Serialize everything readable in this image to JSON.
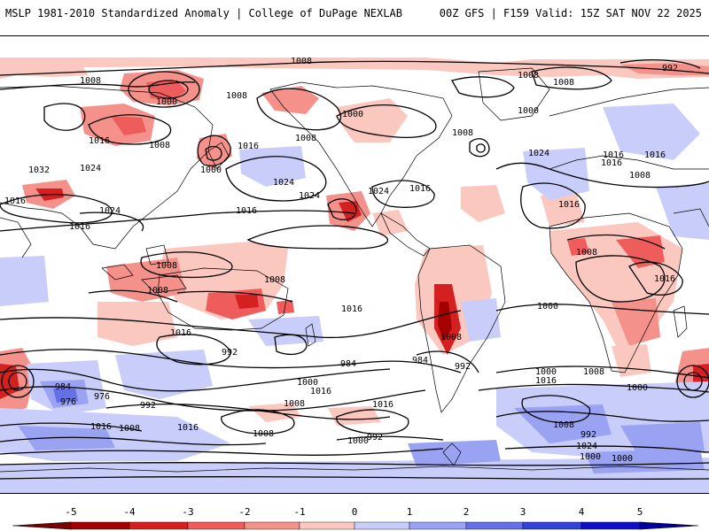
{
  "header": {
    "left_title": "MSLP 1981-2010 Standardized Anomaly | College of DuPage NEXLAB",
    "right_title": "00Z GFS | F159 Valid: 15Z SAT NOV 22 2025"
  },
  "colors": {
    "neg5": "#a50000",
    "neg4": "#d42020",
    "neg3": "#ee5c5c",
    "neg2": "#f5918b",
    "neg1": "#fbc8c0",
    "zero": "#ffffff",
    "pos1": "#c8cdfa",
    "pos2": "#9aa2f2",
    "pos3": "#6670e6",
    "pos4": "#3341d8",
    "pos5": "#1010c8"
  },
  "colorbar": {
    "ticks": [
      "-5",
      "-4",
      "-3",
      "-2",
      "-1",
      "0",
      "1",
      "2",
      "3",
      "4",
      "5"
    ]
  },
  "isobar_labels": [
    {
      "id": "l1",
      "text": "1008"
    },
    {
      "id": "l2",
      "text": "1008"
    },
    {
      "id": "l3",
      "text": "1000"
    },
    {
      "id": "l4",
      "text": "1008"
    },
    {
      "id": "l5",
      "text": "1016"
    },
    {
      "id": "l6",
      "text": "1008"
    },
    {
      "id": "l7",
      "text": "1000"
    },
    {
      "id": "l8",
      "text": "1016"
    },
    {
      "id": "l9",
      "text": "1032"
    },
    {
      "id": "l10",
      "text": "1024"
    },
    {
      "id": "l11",
      "text": "1016"
    },
    {
      "id": "l12",
      "text": "1024"
    },
    {
      "id": "l13",
      "text": "1016"
    },
    {
      "id": "l14",
      "text": "1024"
    },
    {
      "id": "l15",
      "text": "1024"
    },
    {
      "id": "l16",
      "text": "1000"
    },
    {
      "id": "l17",
      "text": "1008"
    },
    {
      "id": "l18",
      "text": "1008"
    },
    {
      "id": "l19",
      "text": "1008"
    },
    {
      "id": "l20",
      "text": "1000"
    },
    {
      "id": "l21",
      "text": "1024"
    },
    {
      "id": "l22",
      "text": "1016"
    },
    {
      "id": "l23",
      "text": "992"
    },
    {
      "id": "l24",
      "text": "1008"
    },
    {
      "id": "l25",
      "text": "1016"
    },
    {
      "id": "l26",
      "text": "1008"
    },
    {
      "id": "l27",
      "text": "1024"
    },
    {
      "id": "l28",
      "text": "1016"
    },
    {
      "id": "l29",
      "text": "1016"
    },
    {
      "id": "l30",
      "text": "1008"
    },
    {
      "id": "l31",
      "text": "1008"
    },
    {
      "id": "l32",
      "text": "1016"
    },
    {
      "id": "l33",
      "text": "1008"
    },
    {
      "id": "l34",
      "text": "1016"
    },
    {
      "id": "l35",
      "text": "1016"
    },
    {
      "id": "l36",
      "text": "1016"
    },
    {
      "id": "l37",
      "text": "1008"
    },
    {
      "id": "l38",
      "text": "1008"
    },
    {
      "id": "l39",
      "text": "1016"
    },
    {
      "id": "l40",
      "text": "1000"
    },
    {
      "id": "l41",
      "text": "992"
    },
    {
      "id": "l42",
      "text": "984"
    },
    {
      "id": "l43",
      "text": "976"
    },
    {
      "id": "l44",
      "text": "976"
    },
    {
      "id": "l45",
      "text": "992"
    },
    {
      "id": "l46",
      "text": "984"
    },
    {
      "id": "l47",
      "text": "1000"
    },
    {
      "id": "l48",
      "text": "1016"
    },
    {
      "id": "l49",
      "text": "1008"
    },
    {
      "id": "l50",
      "text": "1016"
    },
    {
      "id": "l51",
      "text": "1008"
    },
    {
      "id": "l52",
      "text": "1000"
    },
    {
      "id": "l53",
      "text": "992"
    },
    {
      "id": "l54",
      "text": "984"
    },
    {
      "id": "l55",
      "text": "992"
    },
    {
      "id": "l56",
      "text": "1000"
    },
    {
      "id": "l57",
      "text": "1008"
    },
    {
      "id": "l58",
      "text": "1016"
    },
    {
      "id": "l59",
      "text": "1000"
    },
    {
      "id": "l60",
      "text": "1008"
    },
    {
      "id": "l61",
      "text": "992"
    },
    {
      "id": "l62",
      "text": "1024"
    },
    {
      "id": "l63",
      "text": "1000"
    },
    {
      "id": "l64",
      "text": "1000"
    },
    {
      "id": "l65",
      "text": "1016"
    },
    {
      "id": "l66",
      "text": "1008"
    },
    {
      "id": "l67",
      "text": "1016"
    }
  ]
}
